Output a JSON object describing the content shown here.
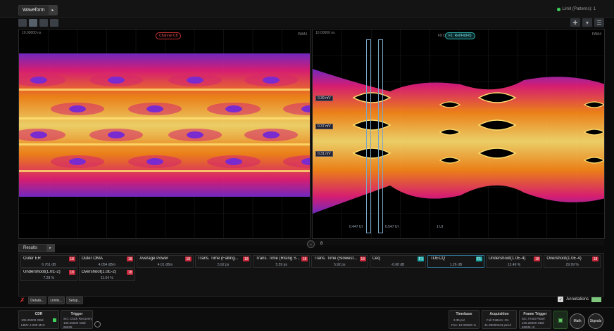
{
  "header": {
    "waveform_tab": "Waveform",
    "status_text": "Limit (Patterns): 1"
  },
  "panes": {
    "left": {
      "corner_label": "10.00000 ns",
      "channel_badge": "Channel C8",
      "format": "PAM4"
    },
    "right": {
      "corner_label": "10.00000 ns",
      "channel_badge": "F1: Ref/Fit(F8)",
      "badge_prefix": "F8 D",
      "format": "PAM4",
      "levels": [
        "0.39 mV",
        "0.37 mV",
        "0.31 mV"
      ],
      "marker_left": "0.447 UI",
      "marker_right": "0.547 UI",
      "marker_far": "1 UI"
    }
  },
  "divider": {
    "page": "8"
  },
  "results": {
    "tab_label": "Results",
    "row1": [
      {
        "name": "Outer ER",
        "badge": "18",
        "value": "6.761 dB"
      },
      {
        "name": "Outer OMA",
        "badge": "18",
        "value": "4.054 dBm"
      },
      {
        "name": "Average Power",
        "badge": "18",
        "value": "4.01 dBm"
      },
      {
        "name": "Trans. Time (Falling...",
        "badge": "18",
        "value": "5.92 ps"
      },
      {
        "name": "Trans. Time (Rising S...",
        "badge": "18",
        "value": "5.59 ps"
      },
      {
        "name": "Trans. Time (Slowest...",
        "badge": "18",
        "value": "5.92 ps"
      },
      {
        "name": "Ceq",
        "badge": "F1",
        "value": "-0.68 dB"
      },
      {
        "name": "TDECQ",
        "badge": "F1",
        "value": "1.26 dB"
      },
      {
        "name": "Undershoot(1.0E-4)",
        "badge": "18",
        "value": "13.49 %"
      },
      {
        "name": "Overshoot(1.0E-4)",
        "badge": "18",
        "value": "29.99 %"
      }
    ],
    "row2": [
      {
        "name": "Undershoot(1.0E-2)",
        "badge": "18",
        "value": "7.28 %"
      },
      {
        "name": "Overshoot(1.0E-2)",
        "badge": "18",
        "value": "11.64 %"
      }
    ],
    "buttons": {
      "details": "Details...",
      "limits": "Limits...",
      "setup": "Setup..."
    },
    "annotations": "Annotations"
  },
  "statusbar": {
    "cdr": {
      "title": "CDR",
      "line1": "106.25000 GBd",
      "line2": "LBW: 4.000 MHz"
    },
    "trigger": {
      "title": "Trigger",
      "line1": "Src: Clock Recovery",
      "line2": "106.25000 GBd",
      "line3": "65535"
    },
    "timebase": {
      "title": "Timebase",
      "line1": "3.35 ps/",
      "line2": "Pos: 10.00000 ns"
    },
    "acquisition": {
      "title": "Acquisition",
      "line1": "Full Pattern: On",
      "line2": "31.99000234 ps/Ul"
    },
    "frame_trigger": {
      "title": "Frame Trigger",
      "line1": "Src: Front Panel",
      "line2": "106.25000 GBd",
      "line3": "65535 UI"
    },
    "math_label": "Math",
    "signals_label": "Signals"
  },
  "colors": {
    "eye_hot": "#ffe070",
    "eye_warm": "#ff8a1a",
    "eye_mid": "#e8207a",
    "eye_cool": "#7a2bd0",
    "accent_cyan": "#1fa6a6",
    "badge_red": "#c8283a"
  }
}
